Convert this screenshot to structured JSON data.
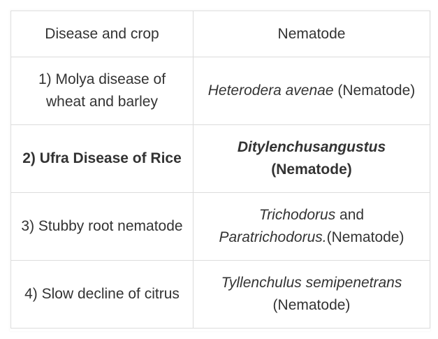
{
  "table": {
    "headers": [
      "Disease and crop",
      "Nematode"
    ],
    "rows": [
      {
        "disease": "1) Molya disease of wheat and barley",
        "nematode_italic": "Heterodera avenae",
        "nematode_suffix": " (Nematode)"
      },
      {
        "disease": "2) Ufra Disease of Rice",
        "nematode_italic": "Ditylenchusangustus",
        "nematode_suffix": "(Nematode)"
      },
      {
        "disease": "3) Stubby root nematode",
        "nematode_italic": "Trichodorus",
        "nematode_mid": " and ",
        "nematode_italic2": "Paratrichodorus.",
        "nematode_suffix": "(Nematode)"
      },
      {
        "disease": "4) Slow decline of citrus",
        "nematode_italic": "Tyllenchulus semipenetrans",
        "nematode_suffix": "(Nematode)"
      }
    ]
  }
}
